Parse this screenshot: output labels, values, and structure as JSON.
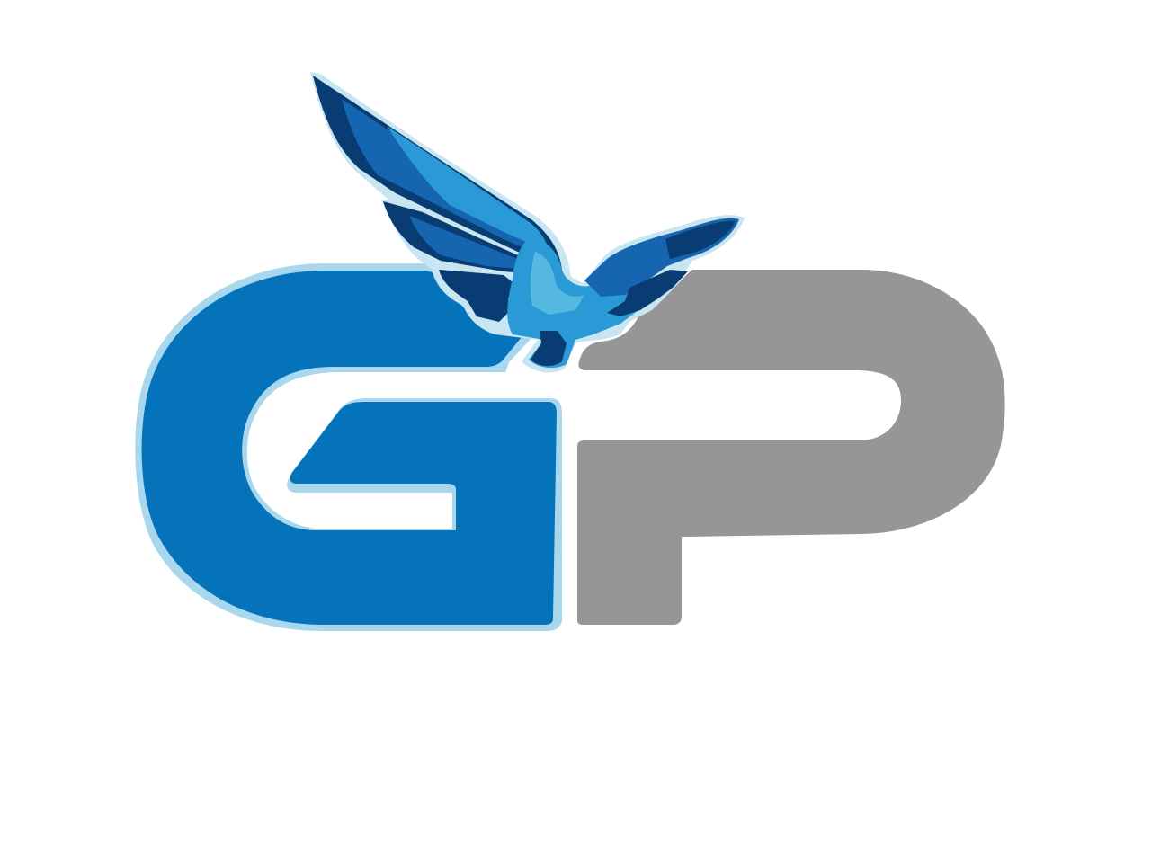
{
  "logo": {
    "letters": [
      "G",
      "P"
    ],
    "colors": {
      "g_letter": "#0573ba",
      "g_outline": "#a9d8ee",
      "p_letter": "#969696",
      "bird_dark": "#0a3c74",
      "bird_mid": "#1565b0",
      "bird_light": "#2a9ad6",
      "bird_highlight": "#55b8e0",
      "bird_outline": "#c8e6f2"
    },
    "emblem": "bird-icon"
  }
}
